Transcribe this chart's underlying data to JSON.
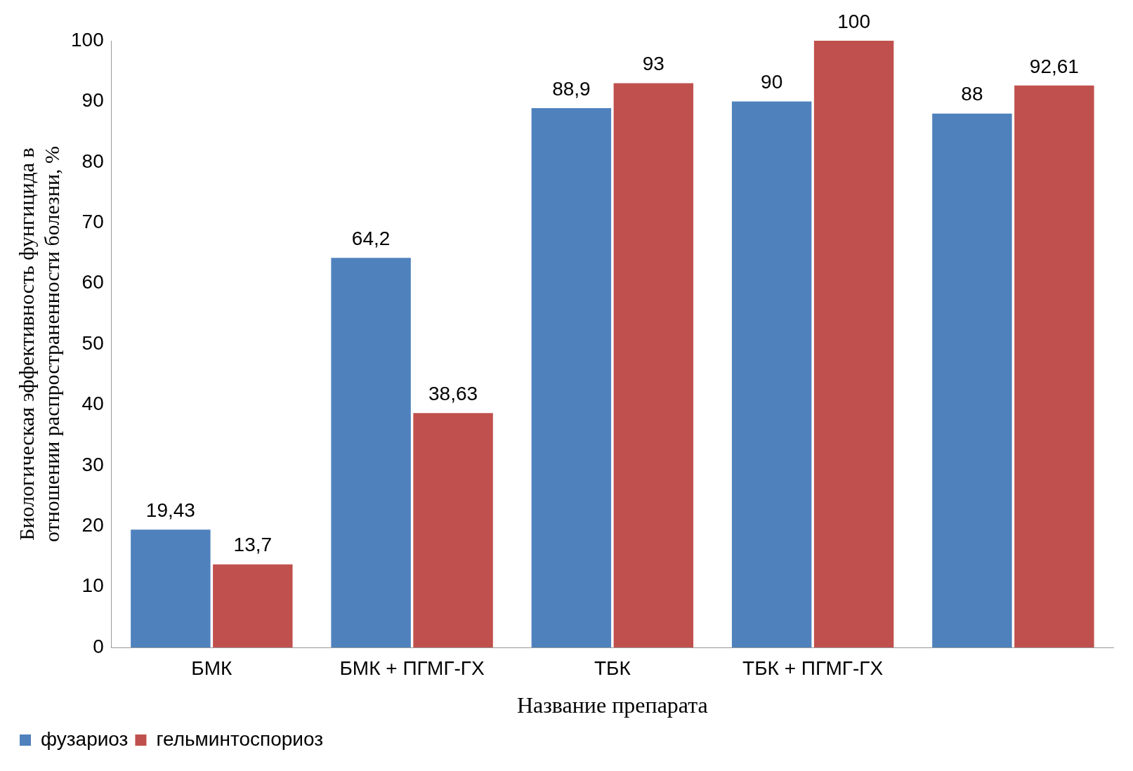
{
  "chart_data": {
    "type": "bar",
    "xlabel": "Название препарата",
    "ylabel": "Биологическая эффективность фунгицида в отношении распространенности болезни, %",
    "categories": [
      "БМК",
      "БМК + ПГМГ-ГХ",
      "ТБК",
      "ТБК + ПГМГ-ГХ",
      null
    ],
    "series": [
      {
        "name": "фузариоз",
        "color": "#4f81bd",
        "values": [
          19.43,
          64.2,
          88.9,
          90,
          88
        ],
        "value_labels": [
          "19,43",
          "64,2",
          "88,9",
          "90",
          "88"
        ]
      },
      {
        "name": "гельминтоспориоз",
        "color": "#c0504d",
        "values": [
          13.7,
          38.63,
          93,
          100,
          92.61
        ],
        "value_labels": [
          "13,7",
          "38,63",
          "93",
          "100",
          "92,61"
        ]
      }
    ],
    "ylim": [
      0,
      100
    ],
    "yticks": [
      0,
      10,
      20,
      30,
      40,
      50,
      60,
      70,
      80,
      90,
      100
    ],
    "grid": false,
    "legend": "bottom left"
  }
}
